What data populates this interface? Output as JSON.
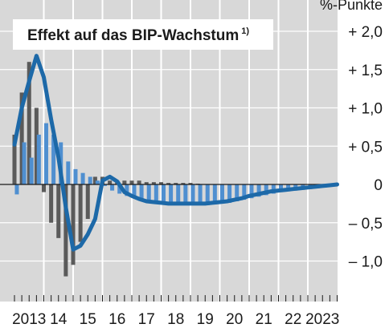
{
  "chart_data": {
    "type": "bar",
    "title": "Effekt auf das BIP-Wachstum",
    "title_footnote": "1)",
    "unit_label": "%-Punkte",
    "grid": true,
    "ylim": [
      -1.4,
      2.2
    ],
    "y_ticks": [
      {
        "value": 2.0,
        "label": "+ 2,0"
      },
      {
        "value": 1.5,
        "label": "+ 1,5"
      },
      {
        "value": 1.0,
        "label": "+ 1,0"
      },
      {
        "value": 0.5,
        "label": "+ 0,5"
      },
      {
        "value": 0.0,
        "label": "0"
      },
      {
        "value": -0.5,
        "label": "– 0,5"
      },
      {
        "value": -1.0,
        "label": "– 1,0"
      }
    ],
    "x_ticks": [
      "2013",
      "14",
      "15",
      "16",
      "17",
      "18",
      "19",
      "20",
      "21",
      "22",
      "2023"
    ],
    "quarters_per_year": 4,
    "series": [
      {
        "type": "bar",
        "color": "#5a5a5a",
        "values": [
          0.65,
          1.2,
          1.6,
          1.0,
          -0.1,
          -0.5,
          -0.7,
          -1.2,
          -1.05,
          -0.75,
          -0.45,
          0.1,
          0.1,
          0.05,
          0.05,
          0.05,
          0.05,
          0.05,
          0.03,
          0.03,
          0.03,
          0.02,
          0.02,
          0.02,
          0.02,
          0.01
        ]
      },
      {
        "type": "bar",
        "color": "#4f8fd0",
        "values": [
          -0.13,
          0.55,
          0.35,
          0.65,
          0.8,
          0.65,
          0.55,
          0.3,
          0.2,
          0.15,
          0.1,
          0.05,
          -0.02,
          -0.08,
          -0.12,
          -0.15,
          -0.18,
          -0.2,
          -0.22,
          -0.24,
          -0.25,
          -0.26,
          -0.27,
          -0.27,
          -0.27,
          -0.27,
          -0.27,
          -0.26,
          -0.25,
          -0.24,
          -0.22,
          -0.2,
          -0.18,
          -0.16,
          -0.14,
          -0.12,
          -0.1,
          -0.09,
          -0.08,
          -0.07,
          -0.06,
          -0.05,
          -0.04
        ]
      },
      {
        "type": "line",
        "color": "#1d69a8",
        "values": [
          0.52,
          1.0,
          1.35,
          1.68,
          1.4,
          0.85,
          0.35,
          -0.3,
          -0.85,
          -0.8,
          -0.65,
          -0.45,
          0.05,
          0.1,
          0.04,
          -0.1,
          -0.15,
          -0.19,
          -0.22,
          -0.23,
          -0.24,
          -0.25,
          -0.25,
          -0.25,
          -0.25,
          -0.25,
          -0.25,
          -0.24,
          -0.23,
          -0.22,
          -0.2,
          -0.18,
          -0.15,
          -0.13,
          -0.11,
          -0.09,
          -0.08,
          -0.07,
          -0.06,
          -0.05,
          -0.04,
          -0.03,
          -0.02,
          -0.01,
          0.0
        ]
      }
    ]
  }
}
